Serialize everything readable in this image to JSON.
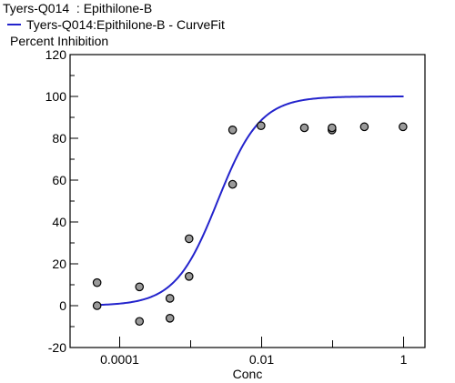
{
  "chart_data": {
    "type": "scatter",
    "title": "Tyers-Q014  : Epithilone-B",
    "ylabel": "Percent Inhibition",
    "xlabel": "Conc",
    "x_scale": "log10",
    "xlim": [
      2e-05,
      2
    ],
    "ylim": [
      -20,
      120
    ],
    "x_ticks": [
      {
        "value": 0.0001,
        "label": "0.0001"
      },
      {
        "value": 0.01,
        "label": "0.01"
      },
      {
        "value": 1,
        "label": "1"
      }
    ],
    "y_ticks": [
      {
        "value": 120,
        "label": "120"
      },
      {
        "value": 100,
        "label": "100"
      },
      {
        "value": 80,
        "label": "80"
      },
      {
        "value": 60,
        "label": "60"
      },
      {
        "value": 40,
        "label": "40"
      },
      {
        "value": 20,
        "label": "20"
      },
      {
        "value": 0,
        "label": "0"
      },
      {
        "value": -20,
        "label": "-20"
      }
    ],
    "series": [
      {
        "type": "scatter",
        "color": "#9a9a9a",
        "points": [
          {
            "x": 4.8e-05,
            "y": 11
          },
          {
            "x": 4.8e-05,
            "y": 0
          },
          {
            "x": 0.00019,
            "y": 9
          },
          {
            "x": 0.00019,
            "y": -7.5
          },
          {
            "x": 0.00051,
            "y": 3.5
          },
          {
            "x": 0.00051,
            "y": -6
          },
          {
            "x": 0.00095,
            "y": 32
          },
          {
            "x": 0.00095,
            "y": 14
          },
          {
            "x": 0.0039,
            "y": 84
          },
          {
            "x": 0.0039,
            "y": 58
          },
          {
            "x": 0.0098,
            "y": 86
          },
          {
            "x": 0.04,
            "y": 85
          },
          {
            "x": 0.098,
            "y": 84
          },
          {
            "x": 0.098,
            "y": 85
          },
          {
            "x": 0.28,
            "y": 85.5
          },
          {
            "x": 0.98,
            "y": 85.5
          }
        ]
      },
      {
        "type": "line",
        "name": "Tyers-Q014:Epithilone-B - CurveFit",
        "color": "#2323cc",
        "fit": {
          "model": "4PL",
          "bottom": 0,
          "top": 100,
          "ec50": 0.0024,
          "hill": 1.45
        },
        "x_range": [
          4.8e-05,
          1
        ]
      }
    ]
  }
}
